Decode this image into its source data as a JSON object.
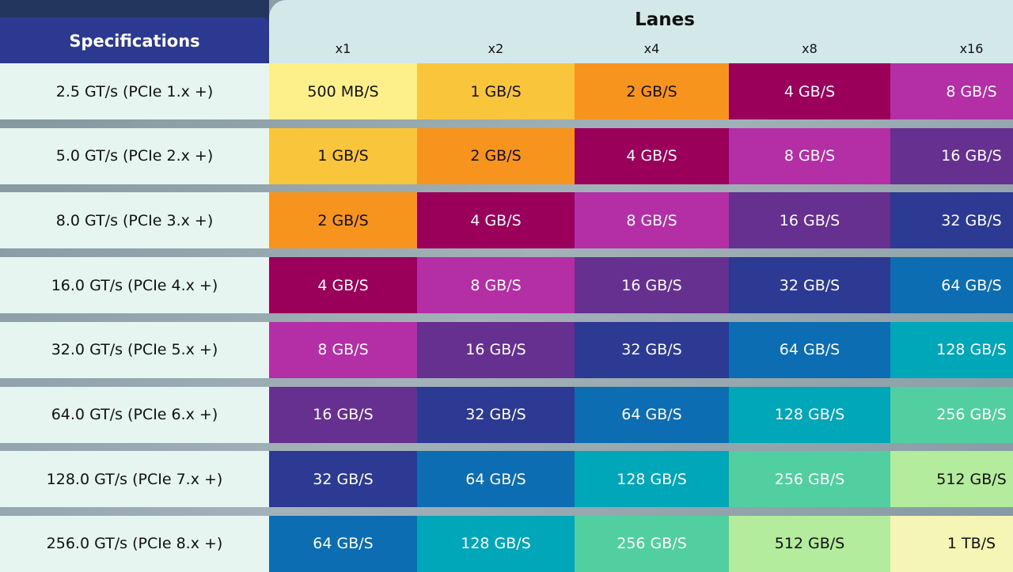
{
  "header": {
    "title": "Specifications",
    "group": "Lanes",
    "columns": [
      "x1",
      "x2",
      "x4",
      "x8",
      "x16"
    ]
  },
  "rows": [
    {
      "spec": "2.5 GT/s (PCIe 1.x +)",
      "cells": [
        "500 MB/S",
        "1 GB/S",
        "2 GB/S",
        "4 GB/S",
        "8 GB/S"
      ]
    },
    {
      "spec": "5.0 GT/s (PCIe 2.x +)",
      "cells": [
        "1 GB/S",
        "2 GB/S",
        "4 GB/S",
        "8 GB/S",
        "16 GB/S"
      ]
    },
    {
      "spec": "8.0 GT/s (PCIe 3.x +)",
      "cells": [
        "2 GB/S",
        "4 GB/S",
        "8 GB/S",
        "16 GB/S",
        "32 GB/S"
      ]
    },
    {
      "spec": "16.0 GT/s (PCIe 4.x +)",
      "cells": [
        "4 GB/S",
        "8 GB/S",
        "16 GB/S",
        "32 GB/S",
        "64 GB/S"
      ]
    },
    {
      "spec": "32.0 GT/s (PCIe 5.x +)",
      "cells": [
        "8 GB/S",
        "16 GB/S",
        "32 GB/S",
        "64 GB/S",
        "128 GB/S"
      ]
    },
    {
      "spec": "64.0 GT/s (PCIe 6.x +)",
      "cells": [
        "16 GB/S",
        "32 GB/S",
        "64 GB/S",
        "128 GB/S",
        "256 GB/S"
      ]
    },
    {
      "spec": "128.0 GT/s (PCIe 7.x +)",
      "cells": [
        "32 GB/S",
        "64 GB/S",
        "128 GB/S",
        "256 GB/S",
        "512 GB/S"
      ]
    },
    {
      "spec": "256.0 GT/s (PCIe 8.x +)",
      "cells": [
        "64 GB/S",
        "128 GB/S",
        "256 GB/S",
        "512 GB/S",
        "1 TB/S"
      ]
    }
  ]
}
